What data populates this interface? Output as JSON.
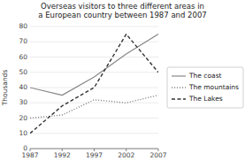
{
  "chart_data": {
    "type": "line",
    "title": "Overseas visitors to three different areas in\na European country between 1987 and 2007",
    "y_label": "Thousands",
    "x": [
      1987,
      1992,
      1997,
      2002,
      2007
    ],
    "xlim": [
      1987,
      2007
    ],
    "xticks": [
      1987,
      1992,
      1997,
      2002,
      2007
    ],
    "ylim": [
      0,
      80
    ],
    "yticks": [
      0,
      10,
      20,
      30,
      40,
      50,
      60,
      70,
      80
    ],
    "grid": true,
    "legend": "right",
    "series": [
      {
        "name": "The coast",
        "color": "#888888",
        "line_style": "solid",
        "values": [
          40,
          35,
          47,
          62,
          75
        ]
      },
      {
        "name": "The mountains",
        "color": "#888888",
        "line_style": "dotted",
        "values": [
          20,
          22,
          32,
          30,
          35
        ]
      },
      {
        "name": "The Lakes",
        "color": "#333333",
        "line_style": "dashed",
        "values": [
          10,
          28,
          40,
          75,
          50
        ]
      }
    ]
  }
}
